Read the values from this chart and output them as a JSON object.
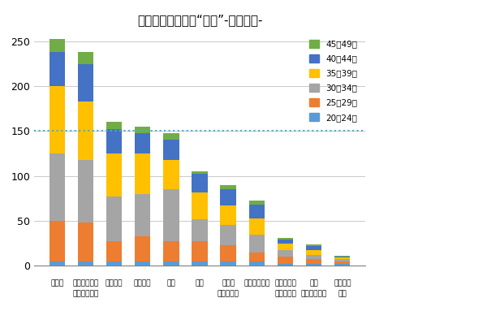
{
  "title": "ニオイが気になる“場所”-複数回答-",
  "series_labels": [
    "20〜24歳",
    "25〜29歳",
    "30〜34歳",
    "35〜39歳",
    "40〜44歳",
    "45〜49歳"
  ],
  "colors": [
    "#5B9BD5",
    "#ED7D31",
    "#A5A5A5",
    "#FFC000",
    "#4472C4",
    "#70AD47"
  ],
  "xlabel_line1": [
    "トイレ",
    "玩関・下駄笥",
    "リビング",
    "キッチン",
    "寝室",
    "浴室",
    "洗面所",
    "クローゼット",
    "子ども部屋",
    "客間",
    "特にない"
  ],
  "xlabel_line2": [
    "",
    "玩関・下駄笥",
    "",
    "",
    "",
    "",
    "部屋の空間",
    "",
    "子ども部屋",
    "その他の部屋",
    "モア"
  ],
  "stacked_values": [
    [
      5,
      5,
      5,
      5,
      5,
      5,
      5,
      5,
      2,
      2,
      2
    ],
    [
      45,
      43,
      22,
      28,
      22,
      22,
      18,
      10,
      8,
      5,
      3
    ],
    [
      75,
      70,
      50,
      47,
      58,
      25,
      22,
      20,
      7,
      5,
      2
    ],
    [
      75,
      65,
      48,
      45,
      33,
      30,
      22,
      18,
      8,
      5,
      2
    ],
    [
      38,
      42,
      27,
      23,
      22,
      20,
      18,
      15,
      4,
      5,
      1
    ],
    [
      15,
      13,
      8,
      7,
      8,
      3,
      5,
      5,
      2,
      2,
      1
    ]
  ],
  "ylim": [
    0,
    260
  ],
  "yticks": [
    0,
    50,
    100,
    150,
    200,
    250
  ],
  "hline_y": 150,
  "hline_color": "#4BACC6",
  "grid_color": "#C0C0C0",
  "bar_width": 0.55
}
